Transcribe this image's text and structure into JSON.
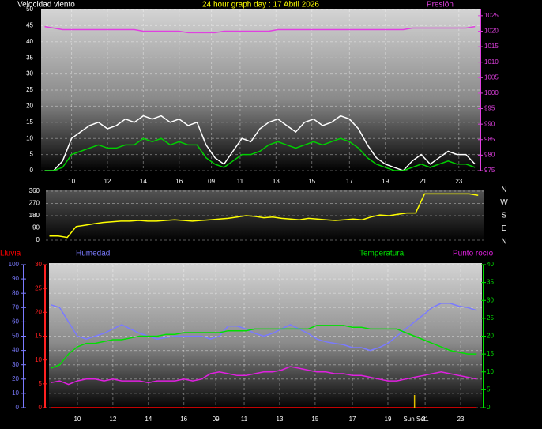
{
  "chart_data": [
    {
      "type": "line",
      "title": "24 hour graph day : 17 Abril 2026",
      "ylabel": "Velocidad viento",
      "y2label": "Presión",
      "x": [
        8.5,
        9,
        9.5,
        10,
        10.5,
        11,
        11.5,
        12,
        12.5,
        13,
        13.5,
        14,
        14.5,
        15,
        15.5,
        16,
        16.5,
        17,
        17.5,
        18,
        18.5,
        19,
        19.5,
        20,
        20.5,
        21,
        21.5,
        22,
        22.5,
        23,
        23.5,
        24,
        24.5,
        25,
        25.5,
        26,
        26.5,
        27,
        27.5,
        28,
        28.5,
        29,
        29.5,
        30,
        30.5,
        31,
        31.5,
        32,
        32.5
      ],
      "xlim": [
        8.3,
        32.8
      ],
      "xticks": [
        {
          "value": 10,
          "label": "10"
        },
        {
          "value": 12,
          "label": "12"
        },
        {
          "value": 14,
          "label": "14"
        },
        {
          "value": 16,
          "label": "16"
        },
        {
          "value": 17.8,
          "label": "09"
        },
        {
          "value": 19.4,
          "label": "11"
        },
        {
          "value": 21.4,
          "label": "13"
        },
        {
          "value": 23.4,
          "label": "15"
        },
        {
          "value": 25.5,
          "label": "17"
        },
        {
          "value": 27.5,
          "label": "19"
        },
        {
          "value": 29.6,
          "label": "21"
        },
        {
          "value": 31.6,
          "label": "23"
        }
      ],
      "ylim": [
        0,
        50
      ],
      "yticks": [
        0,
        5,
        10,
        15,
        20,
        25,
        30,
        35,
        40,
        45,
        50
      ],
      "y2lim": [
        975,
        1027
      ],
      "y2ticks": [
        975,
        980,
        985,
        990,
        995,
        1000,
        1005,
        1010,
        1015,
        1020,
        1025
      ],
      "grid": true,
      "series": [
        {
          "color": "#ffffff",
          "values": [
            0,
            0,
            3,
            10,
            12,
            14,
            15,
            13,
            14,
            16,
            15,
            17,
            16,
            17,
            15,
            16,
            14,
            15,
            8,
            4,
            2,
            6,
            10,
            9,
            13,
            15,
            16,
            14,
            12,
            15,
            16,
            14,
            15,
            17,
            16,
            13,
            8,
            4,
            2,
            1,
            0,
            3,
            5,
            2,
            4,
            6,
            5,
            5,
            2
          ]
        },
        {
          "color": "#00d000",
          "values": [
            0,
            0,
            1,
            5,
            6,
            7,
            8,
            7,
            7,
            8,
            8,
            10,
            9,
            10,
            8,
            9,
            8,
            8,
            4,
            2,
            1,
            3,
            5,
            5,
            6,
            8,
            9,
            8,
            7,
            8,
            9,
            8,
            9,
            10,
            9,
            7,
            4,
            2,
            1,
            0,
            0,
            1,
            2,
            1,
            2,
            3,
            2,
            2,
            1
          ]
        },
        {
          "color": "#e040e0",
          "axis": "y2",
          "values": [
            1021.5,
            1021,
            1020.5,
            1020.5,
            1020.5,
            1020.5,
            1020.5,
            1020.5,
            1020.5,
            1020.5,
            1020.5,
            1020,
            1020,
            1020,
            1020,
            1020,
            1019.5,
            1019.5,
            1019.5,
            1019.5,
            1020,
            1020,
            1020,
            1020,
            1020,
            1020,
            1020.5,
            1020.5,
            1020.5,
            1020.5,
            1020.5,
            1020.5,
            1020.5,
            1020.5,
            1020.5,
            1020.5,
            1020.5,
            1020.5,
            1020.5,
            1020.5,
            1020.5,
            1021,
            1021,
            1021,
            1021,
            1021,
            1021,
            1021,
            1021.5
          ]
        }
      ]
    },
    {
      "type": "line",
      "x": [
        8.5,
        9,
        9.5,
        10,
        10.5,
        11,
        11.5,
        12,
        12.5,
        13,
        13.5,
        14,
        14.5,
        15,
        15.5,
        16,
        16.5,
        17,
        17.5,
        18,
        18.5,
        19,
        19.5,
        20,
        20.5,
        21,
        21.5,
        22,
        22.5,
        23,
        23.5,
        24,
        24.5,
        25,
        25.5,
        26,
        26.5,
        27,
        27.5,
        28,
        28.5,
        29,
        29.5,
        30,
        30.5,
        31,
        31.5,
        32,
        32.5
      ],
      "xlim": [
        8.3,
        32.8
      ],
      "ylim": [
        0,
        360
      ],
      "yticks": [
        0,
        90,
        180,
        270,
        360
      ],
      "y2lim": [
        0,
        360
      ],
      "y2ticks": [
        {
          "value": 0,
          "label": "N"
        },
        {
          "value": 90,
          "label": "E"
        },
        {
          "value": 180,
          "label": "S"
        },
        {
          "value": 270,
          "label": "W"
        },
        {
          "value": 360,
          "label": "N"
        }
      ],
      "grid": true,
      "series": [
        {
          "color": "#ffff00",
          "values": [
            30,
            30,
            20,
            100,
            110,
            120,
            130,
            135,
            140,
            140,
            145,
            140,
            140,
            145,
            150,
            145,
            140,
            145,
            150,
            155,
            160,
            170,
            180,
            175,
            165,
            170,
            160,
            155,
            150,
            160,
            155,
            150,
            145,
            150,
            155,
            150,
            170,
            185,
            180,
            190,
            200,
            200,
            340,
            340,
            340,
            340,
            340,
            340,
            330
          ]
        }
      ]
    },
    {
      "type": "line",
      "x": [
        8.5,
        9,
        9.5,
        10,
        10.5,
        11,
        11.5,
        12,
        12.5,
        13,
        13.5,
        14,
        14.5,
        15,
        15.5,
        16,
        16.5,
        17,
        17.5,
        18,
        18.5,
        19,
        19.5,
        20,
        20.5,
        21,
        21.5,
        22,
        22.5,
        23,
        23.5,
        24,
        24.5,
        25,
        25.5,
        26,
        26.5,
        27,
        27.5,
        28,
        28.5,
        29,
        29.5,
        30,
        30.5,
        31,
        31.5,
        32,
        32.5
      ],
      "xlim": [
        8.4,
        32.8
      ],
      "xticks": [
        {
          "value": 10,
          "label": "10"
        },
        {
          "value": 12,
          "label": "12"
        },
        {
          "value": 14,
          "label": "14"
        },
        {
          "value": 16,
          "label": "16"
        },
        {
          "value": 17.8,
          "label": "09"
        },
        {
          "value": 19.4,
          "label": "11"
        },
        {
          "value": 21.4,
          "label": "13"
        },
        {
          "value": 23.4,
          "label": "15"
        },
        {
          "value": 25.5,
          "label": "17"
        },
        {
          "value": 27.5,
          "label": "19"
        },
        {
          "value": 29.6,
          "label": "21"
        },
        {
          "value": 31.6,
          "label": "23"
        }
      ],
      "ylim": [
        0,
        100
      ],
      "yticks": [
        0,
        10,
        20,
        30,
        40,
        50,
        60,
        70,
        80,
        90,
        100
      ],
      "y2lim": [
        0,
        40
      ],
      "y2ticks": [
        0,
        5,
        10,
        15,
        20,
        25,
        30,
        35,
        40
      ],
      "y3lim": [
        0,
        30
      ],
      "y3ticks": [
        0,
        5,
        10,
        15,
        20,
        25,
        30
      ],
      "grid": true,
      "annotation": {
        "text": "Sun Set",
        "x": 29.0
      },
      "series": [
        {
          "name": "Lluvia",
          "color": "#ff0000",
          "axis": "y3",
          "values": [
            0,
            0,
            0,
            0,
            0,
            0,
            0,
            0,
            0,
            0,
            0,
            0,
            0,
            0,
            0,
            0,
            0,
            0,
            0,
            0,
            0,
            0,
            0,
            0,
            0,
            0,
            0,
            0,
            0,
            0,
            0,
            0,
            0,
            0,
            0,
            0,
            0,
            0,
            0,
            0,
            0,
            0,
            0,
            0,
            0,
            0,
            0,
            0,
            0
          ]
        },
        {
          "name": "Humedad",
          "color": "#7a7aff",
          "values": [
            72,
            70,
            60,
            50,
            48,
            50,
            52,
            55,
            58,
            55,
            52,
            50,
            48,
            49,
            50,
            50,
            50,
            50,
            48,
            50,
            57,
            57,
            55,
            52,
            50,
            52,
            55,
            58,
            55,
            52,
            48,
            46,
            45,
            44,
            42,
            42,
            40,
            42,
            45,
            50,
            55,
            60,
            65,
            70,
            73,
            73,
            71,
            70,
            68
          ]
        },
        {
          "name": "Temperatura",
          "color": "#00e000",
          "axis": "y2",
          "values": [
            11,
            12,
            15,
            17,
            18,
            18,
            18.5,
            19,
            19,
            19.5,
            20,
            20,
            20,
            20.5,
            20.5,
            21,
            21,
            21,
            21,
            21,
            21.5,
            21.5,
            21.5,
            22,
            22,
            22,
            22,
            22,
            22,
            22,
            23,
            23,
            23,
            23,
            22.5,
            22.5,
            22,
            22,
            22,
            22,
            21,
            20,
            19,
            18,
            17,
            16,
            15.5,
            15,
            15
          ]
        },
        {
          "name": "Punto rocío",
          "color": "#e020e0",
          "axis": "y2",
          "values": [
            7,
            7.5,
            6.5,
            7.5,
            8,
            8,
            7.5,
            8,
            7.5,
            7.5,
            7.5,
            7,
            7.5,
            7.5,
            7.5,
            8,
            7.5,
            8,
            9.5,
            10,
            9.5,
            9,
            9,
            9.5,
            10,
            10,
            10.5,
            11.5,
            11,
            10.5,
            10,
            10,
            9.5,
            9.5,
            9,
            9,
            8.5,
            8,
            7.5,
            7.5,
            8,
            8.5,
            9,
            9.5,
            10,
            9.5,
            9,
            8.5,
            8
          ]
        }
      ]
    }
  ]
}
